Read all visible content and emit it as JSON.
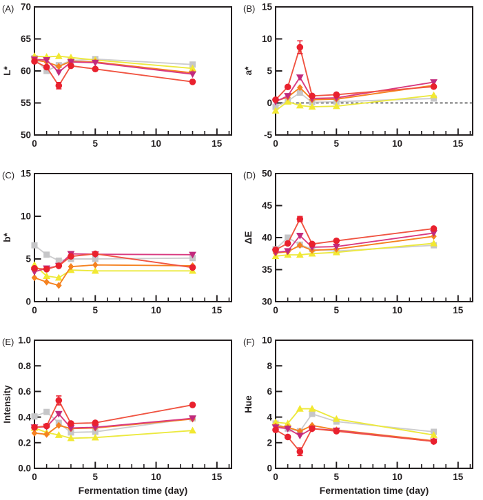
{
  "figure": {
    "xlabel": "Fermentation time (day)",
    "xlim": [
      0,
      16.2
    ],
    "x_major_ticks": [
      0,
      5,
      10,
      15
    ],
    "x_minor_step": 1,
    "x_minor_max": 16,
    "background": "#ffffff",
    "axis_color": "#231f20",
    "series_styles": [
      {
        "name": "gray-square",
        "marker": "square",
        "color": "#c6c6c8",
        "line_color": "#cdcdcf"
      },
      {
        "name": "yellow-up-triangle",
        "marker": "triangle-up",
        "color": "#f2e832",
        "line_color": "#ece93f"
      },
      {
        "name": "orange-diamond",
        "marker": "diamond",
        "color": "#f58220",
        "line_color": "#f58220"
      },
      {
        "name": "magenta-down-triangle",
        "marker": "triangle-down",
        "color": "#c22a7c",
        "line_color": "#d93a80"
      },
      {
        "name": "red-circle",
        "marker": "circle",
        "color": "#e9212e",
        "line_color": "#f05442"
      }
    ]
  },
  "chart_data": [
    {
      "type": "line",
      "panel_label": "(A)",
      "ylabel": "L*",
      "ylim": [
        50,
        70
      ],
      "yticks": [
        50,
        55,
        60,
        65,
        70
      ],
      "ytick_labels": [
        "50",
        "55",
        "60",
        "65",
        "70"
      ],
      "x": [
        0,
        1,
        2,
        3,
        5,
        13
      ],
      "series": [
        {
          "name": "gray-square",
          "values": [
            62.0,
            60.0,
            60.9,
            61.6,
            61.85,
            61.0
          ]
        },
        {
          "name": "yellow-up-triangle",
          "values": [
            62.3,
            62.2,
            62.3,
            62.1,
            61.7,
            60.4
          ]
        },
        {
          "name": "orange-diamond",
          "values": [
            61.7,
            61.4,
            60.7,
            61.5,
            61.4,
            59.7
          ]
        },
        {
          "name": "magenta-down-triangle",
          "values": [
            61.8,
            61.7,
            59.8,
            61.4,
            61.3,
            59.5
          ]
        },
        {
          "name": "red-circle",
          "values": [
            61.5,
            60.6,
            57.7,
            60.8,
            60.3,
            58.3
          ],
          "errors": [
            null,
            null,
            0.5,
            null,
            null,
            null
          ]
        }
      ]
    },
    {
      "type": "line",
      "panel_label": "(B)",
      "ylabel": "a*",
      "ylim": [
        -5,
        15
      ],
      "yticks": [
        -5,
        0,
        5,
        10,
        15
      ],
      "ytick_labels": [
        "-5",
        "0",
        "5",
        "10",
        "15"
      ],
      "zero_line": 0,
      "x": [
        0,
        1,
        2,
        3,
        5,
        13
      ],
      "series": [
        {
          "name": "gray-square",
          "values": [
            -0.6,
            0.3,
            1.6,
            0.1,
            0.2,
            0.7
          ]
        },
        {
          "name": "yellow-up-triangle",
          "values": [
            -1.2,
            0.2,
            -0.4,
            -0.6,
            -0.5,
            1.2
          ]
        },
        {
          "name": "orange-diamond",
          "values": [
            0.3,
            0.9,
            2.4,
            0.5,
            0.6,
            2.75
          ]
        },
        {
          "name": "magenta-down-triangle",
          "values": [
            0.2,
            1.1,
            4.0,
            0.7,
            0.8,
            3.25
          ]
        },
        {
          "name": "red-circle",
          "values": [
            0.5,
            2.5,
            8.7,
            1.1,
            1.3,
            2.55
          ],
          "errors": [
            null,
            null,
            1.0,
            null,
            null,
            null
          ]
        }
      ]
    },
    {
      "type": "line",
      "panel_label": "(C)",
      "ylabel": "b*",
      "ylim": [
        0,
        15
      ],
      "yticks": [
        0,
        5,
        10,
        15
      ],
      "ytick_labels": [
        "0",
        "5",
        "10",
        "15"
      ],
      "x": [
        0,
        1,
        2,
        3,
        5,
        13
      ],
      "series": [
        {
          "name": "gray-square",
          "values": [
            6.6,
            5.5,
            4.8,
            5.0,
            5.0,
            5.1
          ]
        },
        {
          "name": "yellow-up-triangle",
          "values": [
            4.3,
            3.0,
            2.8,
            3.7,
            3.6,
            3.6
          ]
        },
        {
          "name": "orange-diamond",
          "values": [
            2.8,
            2.3,
            1.9,
            4.1,
            4.3,
            4.2
          ]
        },
        {
          "name": "magenta-down-triangle",
          "values": [
            3.5,
            3.9,
            4.2,
            5.6,
            5.55,
            5.5
          ]
        },
        {
          "name": "red-circle",
          "values": [
            3.9,
            3.8,
            4.2,
            5.3,
            5.6,
            4.0
          ]
        }
      ]
    },
    {
      "type": "line",
      "panel_label": "(D)",
      "ylabel": "ΔE",
      "ylim": [
        30,
        50
      ],
      "yticks": [
        30,
        35,
        40,
        45,
        50
      ],
      "ytick_labels": [
        "30",
        "35",
        "40",
        "45",
        "50"
      ],
      "x": [
        0,
        1,
        2,
        3,
        5,
        13
      ],
      "series": [
        {
          "name": "gray-square",
          "values": [
            38.2,
            40.0,
            38.9,
            38.2,
            37.9,
            38.8
          ]
        },
        {
          "name": "yellow-up-triangle",
          "values": [
            37.1,
            37.3,
            37.3,
            37.5,
            37.7,
            39.1
          ]
        },
        {
          "name": "orange-diamond",
          "values": [
            37.6,
            37.8,
            38.8,
            38.0,
            38.2,
            40.2
          ]
        },
        {
          "name": "magenta-down-triangle",
          "values": [
            37.7,
            37.9,
            40.3,
            38.5,
            38.6,
            40.7
          ]
        },
        {
          "name": "red-circle",
          "values": [
            38.1,
            39.1,
            42.9,
            39.0,
            39.5,
            41.4
          ],
          "errors": [
            null,
            null,
            0.4,
            null,
            null,
            null
          ]
        }
      ]
    },
    {
      "type": "line",
      "panel_label": "(E)",
      "ylabel": "Intensity",
      "xlabel": "Fermentation time (day)",
      "ylim": [
        0,
        1.0
      ],
      "yticks": [
        0,
        0.2,
        0.4,
        0.6,
        0.8,
        1.0
      ],
      "ytick_labels": [
        "0.0",
        "0.2",
        "0.4",
        "0.6",
        "0.8",
        "1.0"
      ],
      "x": [
        0,
        1,
        2,
        3,
        5,
        13
      ],
      "series": [
        {
          "name": "gray-square",
          "values": [
            0.405,
            0.44,
            0.355,
            0.28,
            0.285,
            0.39
          ]
        },
        {
          "name": "yellow-up-triangle",
          "values": [
            0.315,
            0.28,
            0.26,
            0.235,
            0.24,
            0.295
          ]
        },
        {
          "name": "orange-diamond",
          "values": [
            0.275,
            0.265,
            0.335,
            0.31,
            0.315,
            0.385
          ]
        },
        {
          "name": "magenta-down-triangle",
          "values": [
            0.32,
            0.325,
            0.425,
            0.315,
            0.32,
            0.39
          ]
        },
        {
          "name": "red-circle",
          "values": [
            0.32,
            0.33,
            0.53,
            0.35,
            0.355,
            0.495
          ],
          "errors": [
            null,
            null,
            0.035,
            null,
            null,
            null
          ]
        }
      ]
    },
    {
      "type": "line",
      "panel_label": "(F)",
      "ylabel": "Hue",
      "xlabel": "Fermentation time (day)",
      "ylim": [
        0,
        10
      ],
      "yticks": [
        0,
        2,
        4,
        6,
        8,
        10
      ],
      "ytick_labels": [
        "0",
        "2",
        "4",
        "6",
        "8",
        "10"
      ],
      "x": [
        0,
        1,
        2,
        3,
        5,
        13
      ],
      "series": [
        {
          "name": "gray-square",
          "values": [
            3.5,
            3.1,
            2.9,
            4.25,
            3.65,
            2.85
          ]
        },
        {
          "name": "yellow-up-triangle",
          "values": [
            3.6,
            3.5,
            4.65,
            4.65,
            3.85,
            2.6
          ]
        },
        {
          "name": "orange-diamond",
          "values": [
            3.3,
            3.2,
            2.9,
            3.35,
            3.0,
            2.15
          ]
        },
        {
          "name": "magenta-down-triangle",
          "values": [
            3.2,
            3.1,
            2.55,
            3.1,
            2.95,
            2.1
          ]
        },
        {
          "name": "red-circle",
          "values": [
            3.0,
            2.45,
            1.3,
            3.1,
            2.9,
            2.1
          ],
          "errors": [
            null,
            null,
            0.3,
            null,
            null,
            null
          ]
        }
      ]
    }
  ]
}
